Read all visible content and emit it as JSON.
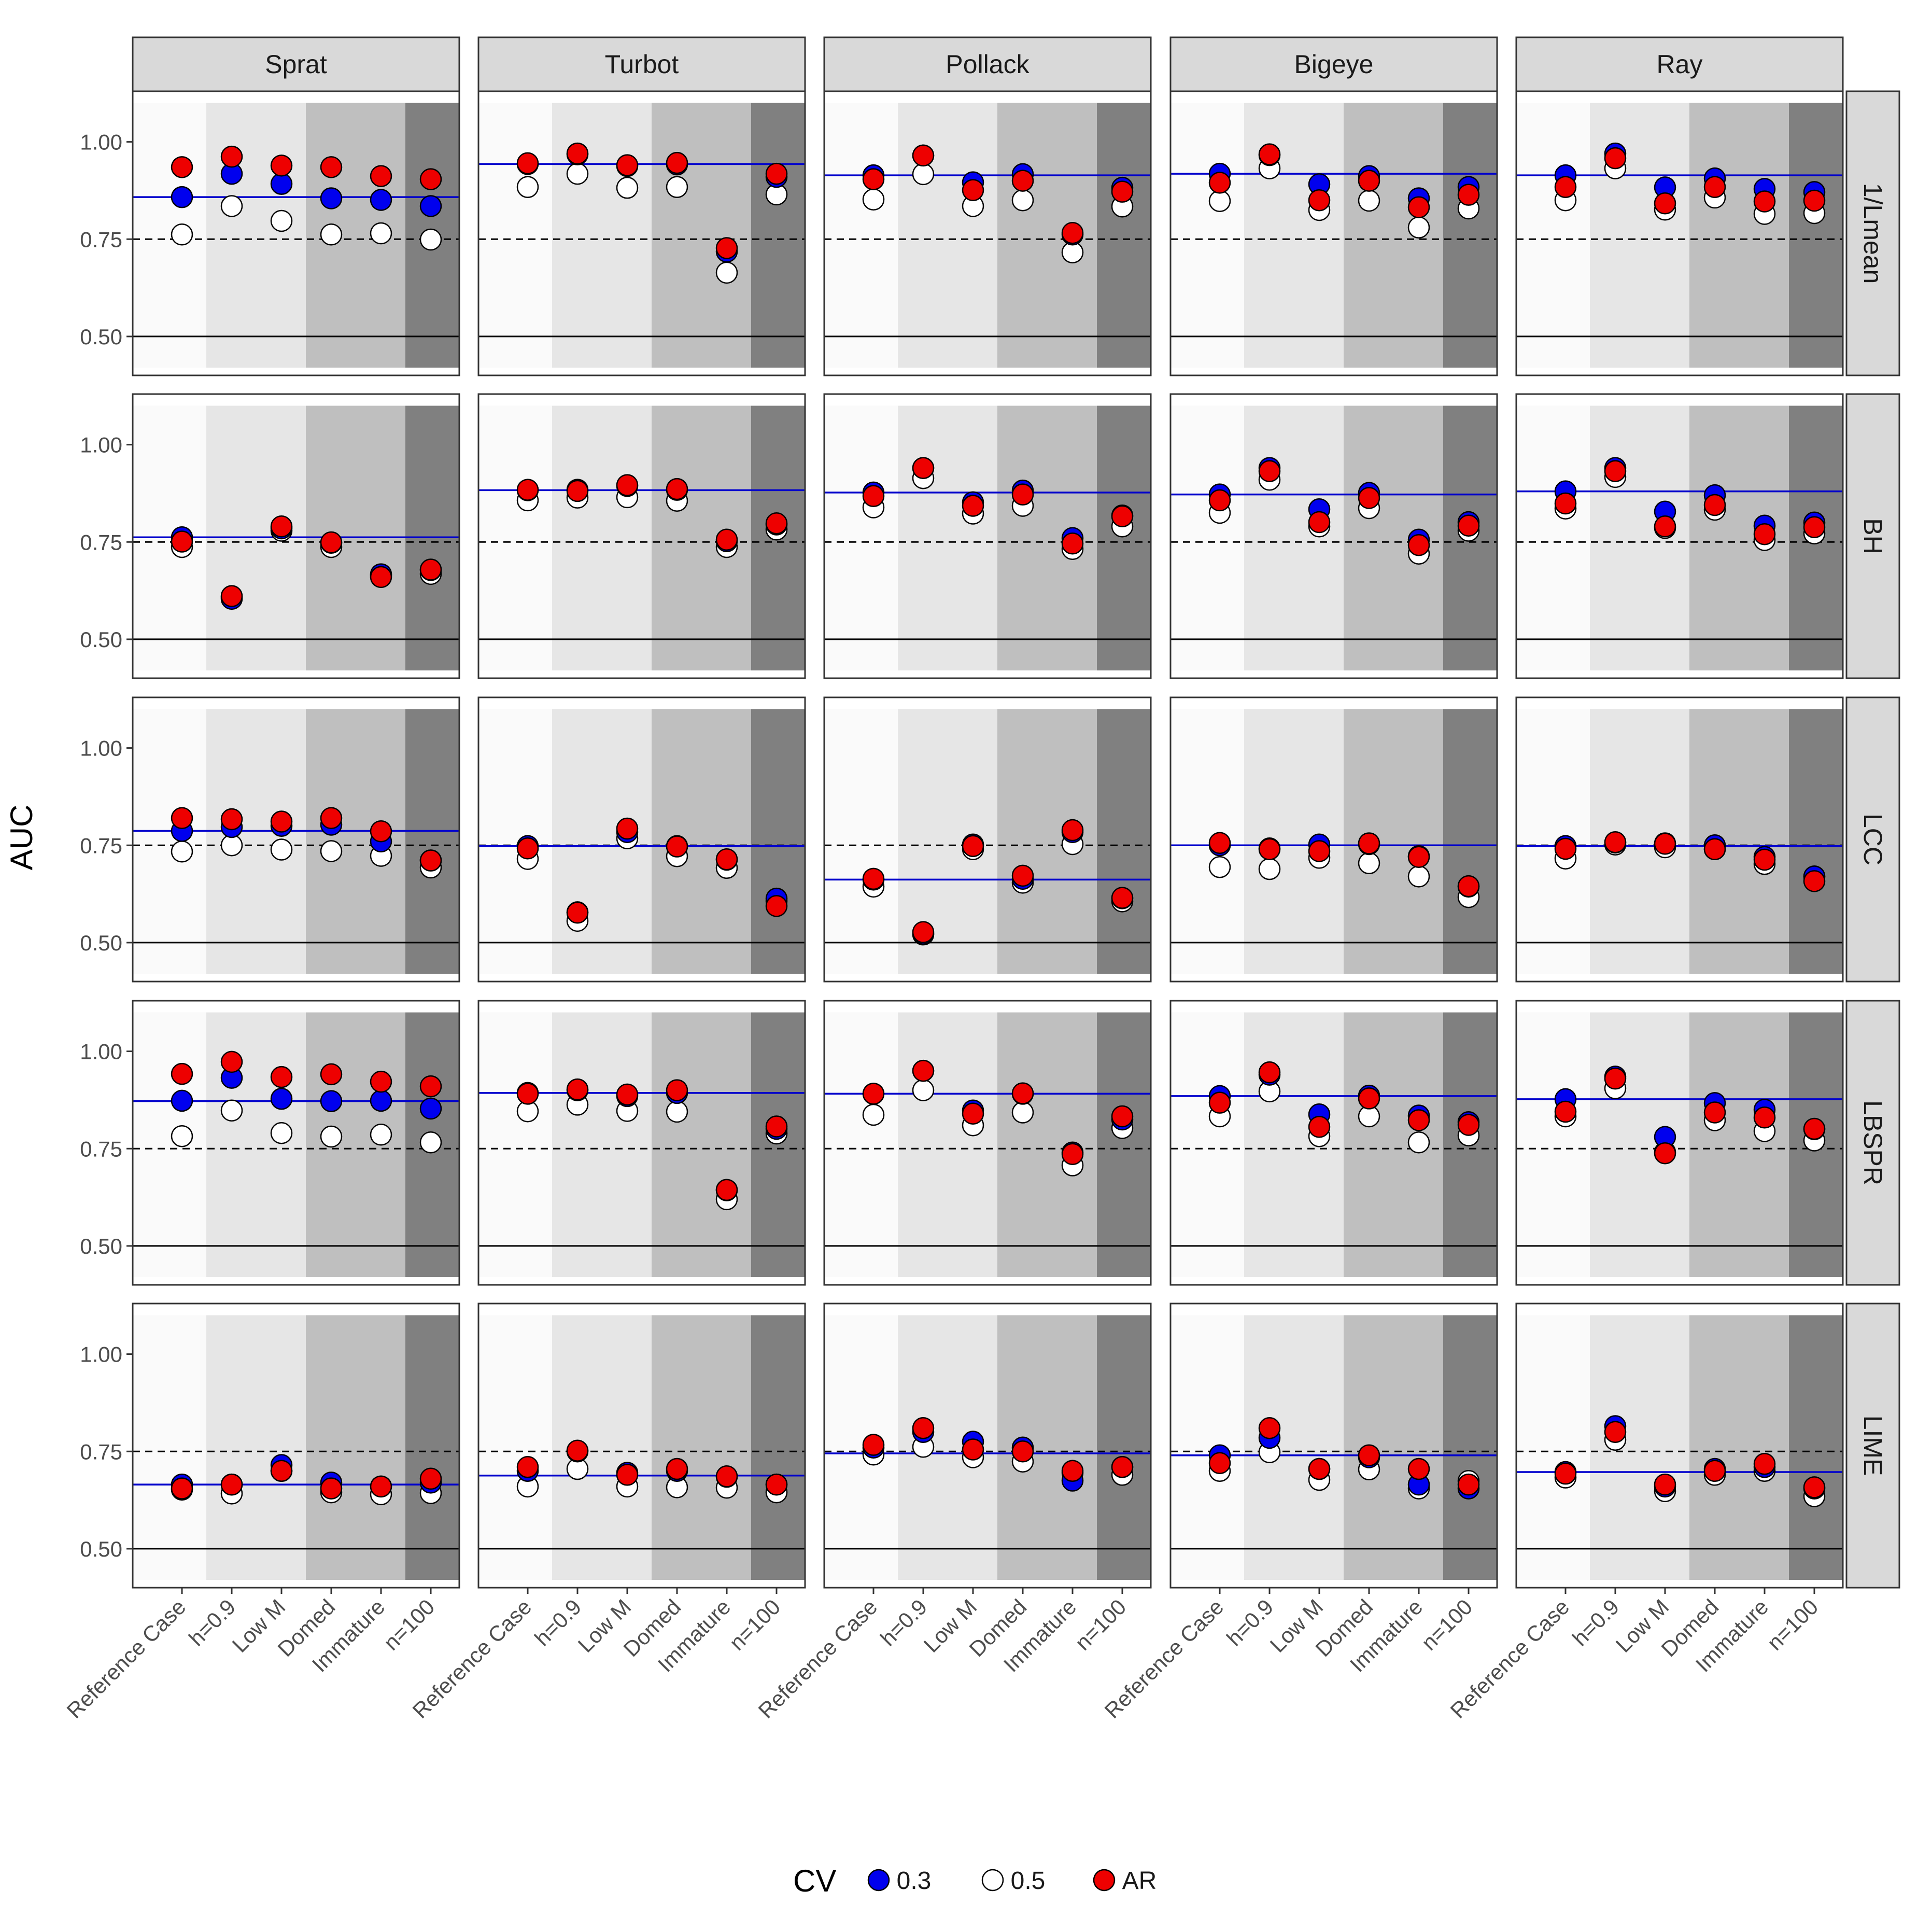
{
  "chart_data": {
    "type": "scatter",
    "ylabel": "AUC",
    "xlabel": "",
    "ylim": [
      0.4,
      1.13
    ],
    "yticks": [
      "0.50",
      "0.75",
      "1.00"
    ],
    "ytick_values": [
      0.5,
      0.75,
      1.0
    ],
    "categories": [
      "Reference Case",
      "h=0.9",
      "Low M",
      "Domed",
      "Immature",
      "n=100"
    ],
    "columns": [
      "Sprat",
      "Turbot",
      "Pollack",
      "Bigeye",
      "Ray"
    ],
    "rows": [
      "1/Lmean",
      "BH",
      "LCC",
      "LBSPR",
      "LIME"
    ],
    "reference_lines": {
      "solid": 0.5,
      "dashed": 0.75
    },
    "legend": {
      "title": "CV",
      "placement": "bottom",
      "entries": [
        {
          "label": "0.3",
          "color": "#0000ee"
        },
        {
          "label": "0.5",
          "color": "#ffffff"
        },
        {
          "label": "AR",
          "color": "#ee0000"
        }
      ]
    },
    "colors": {
      "cv03": "#0000ee",
      "cv05": "#ffffff",
      "ar": "#ee0000",
      "ref_line": "#0000cc",
      "band_shades": [
        "#fafafa",
        "#e6e6e6",
        "#e6e6e6",
        "#bfbfbf",
        "#bfbfbf",
        "#808080"
      ]
    },
    "panels": {
      "1/Lmean": {
        "Sprat": {
          "blue_line": 0.858,
          "cv03": [
            0.858,
            0.918,
            0.892,
            0.855,
            0.851,
            0.835
          ],
          "cv05": [
            0.762,
            0.835,
            0.797,
            0.762,
            0.765,
            0.749
          ],
          "ar": [
            0.935,
            0.962,
            0.939,
            0.935,
            0.912,
            0.904
          ]
        },
        "Turbot": {
          "blue_line": 0.943,
          "cv03": [
            0.943,
            0.968,
            0.938,
            0.942,
            0.718,
            0.91
          ],
          "cv05": [
            0.884,
            0.918,
            0.882,
            0.884,
            0.664,
            0.865
          ],
          "ar": [
            0.945,
            0.97,
            0.94,
            0.946,
            0.727,
            0.918
          ]
        },
        "Pollack": {
          "blue_line": 0.914,
          "cv03": [
            0.914,
            0.965,
            0.896,
            0.917,
            0.762,
            0.882
          ],
          "cv05": [
            0.852,
            0.917,
            0.835,
            0.85,
            0.716,
            0.834
          ],
          "ar": [
            0.904,
            0.965,
            0.876,
            0.9,
            0.766,
            0.872
          ]
        },
        "Bigeye": {
          "blue_line": 0.918,
          "cv03": [
            0.918,
            0.966,
            0.891,
            0.912,
            0.855,
            0.884
          ],
          "cv05": [
            0.848,
            0.932,
            0.825,
            0.849,
            0.78,
            0.829
          ],
          "ar": [
            0.895,
            0.968,
            0.85,
            0.9,
            0.832,
            0.864
          ]
        },
        "Ray": {
          "blue_line": 0.914,
          "cv03": [
            0.914,
            0.97,
            0.883,
            0.906,
            0.879,
            0.871
          ],
          "cv05": [
            0.85,
            0.932,
            0.826,
            0.857,
            0.815,
            0.817
          ],
          "ar": [
            0.884,
            0.958,
            0.842,
            0.884,
            0.847,
            0.849
          ]
        }
      },
      "BH": {
        "Sprat": {
          "blue_line": 0.762,
          "cv03": [
            0.762,
            0.604,
            0.785,
            0.748,
            0.667,
            0.678
          ],
          "cv05": [
            0.737,
            0.608,
            0.779,
            0.737,
            0.664,
            0.668
          ],
          "ar": [
            0.751,
            0.611,
            0.79,
            0.749,
            0.66,
            0.679
          ]
        },
        "Turbot": {
          "blue_line": 0.883,
          "cv03": [
            0.883,
            0.884,
            0.894,
            0.884,
            0.752,
            0.795
          ],
          "cv05": [
            0.857,
            0.864,
            0.865,
            0.856,
            0.737,
            0.782
          ],
          "ar": [
            0.884,
            0.881,
            0.896,
            0.886,
            0.756,
            0.798
          ]
        },
        "Pollack": {
          "blue_line": 0.877,
          "cv03": [
            0.877,
            0.94,
            0.852,
            0.882,
            0.76,
            0.818
          ],
          "cv05": [
            0.839,
            0.914,
            0.823,
            0.843,
            0.732,
            0.79
          ],
          "ar": [
            0.868,
            0.94,
            0.843,
            0.872,
            0.746,
            0.816
          ]
        },
        "Bigeye": {
          "blue_line": 0.872,
          "cv03": [
            0.872,
            0.94,
            0.834,
            0.876,
            0.756,
            0.801
          ],
          "cv05": [
            0.825,
            0.91,
            0.79,
            0.837,
            0.72,
            0.779
          ],
          "ar": [
            0.857,
            0.932,
            0.801,
            0.863,
            0.742,
            0.792
          ]
        },
        "Ray": {
          "blue_line": 0.88,
          "cv03": [
            0.88,
            0.94,
            0.828,
            0.87,
            0.792,
            0.8
          ],
          "cv05": [
            0.836,
            0.917,
            0.786,
            0.833,
            0.755,
            0.772
          ],
          "ar": [
            0.849,
            0.932,
            0.79,
            0.845,
            0.77,
            0.788
          ]
        }
      },
      "LCC": {
        "Sprat": {
          "blue_line": 0.787,
          "cv03": [
            0.787,
            0.797,
            0.8,
            0.803,
            0.76,
            0.711
          ],
          "cv05": [
            0.734,
            0.75,
            0.739,
            0.735,
            0.723,
            0.693
          ],
          "ar": [
            0.82,
            0.817,
            0.811,
            0.82,
            0.786,
            0.711
          ]
        },
        "Turbot": {
          "blue_line": 0.748,
          "cv03": [
            0.748,
            0.578,
            0.784,
            0.748,
            0.713,
            0.613
          ],
          "cv05": [
            0.715,
            0.556,
            0.768,
            0.722,
            0.692,
            0.607
          ],
          "ar": [
            0.742,
            0.577,
            0.793,
            0.747,
            0.714,
            0.594
          ]
        },
        "Pollack": {
          "blue_line": 0.662,
          "cv03": [
            0.662,
            0.523,
            0.752,
            0.664,
            0.784,
            0.614
          ],
          "cv05": [
            0.644,
            0.521,
            0.74,
            0.654,
            0.753,
            0.606
          ],
          "ar": [
            0.664,
            0.527,
            0.748,
            0.672,
            0.789,
            0.615
          ]
        },
        "Bigeye": {
          "blue_line": 0.75,
          "cv03": [
            0.75,
            0.742,
            0.752,
            0.753,
            0.722,
            0.644
          ],
          "cv05": [
            0.694,
            0.689,
            0.718,
            0.704,
            0.67,
            0.617
          ],
          "ar": [
            0.756,
            0.74,
            0.735,
            0.755,
            0.72,
            0.645
          ]
        },
        "Ray": {
          "blue_line": 0.748,
          "cv03": [
            0.748,
            0.757,
            0.755,
            0.75,
            0.72,
            0.67
          ],
          "cv05": [
            0.716,
            0.752,
            0.745,
            0.74,
            0.702,
            0.67
          ],
          "ar": [
            0.741,
            0.758,
            0.754,
            0.74,
            0.713,
            0.658
          ]
        }
      },
      "LBSPR": {
        "Sprat": {
          "blue_line": 0.872,
          "cv03": [
            0.873,
            0.932,
            0.878,
            0.872,
            0.873,
            0.853
          ],
          "cv05": [
            0.782,
            0.848,
            0.79,
            0.781,
            0.786,
            0.766
          ],
          "ar": [
            0.942,
            0.973,
            0.934,
            0.941,
            0.922,
            0.91
          ]
        },
        "Turbot": {
          "blue_line": 0.893,
          "cv03": [
            0.893,
            0.9,
            0.885,
            0.893,
            0.643,
            0.801
          ],
          "cv05": [
            0.846,
            0.863,
            0.847,
            0.845,
            0.62,
            0.789
          ],
          "ar": [
            0.891,
            0.902,
            0.889,
            0.9,
            0.644,
            0.807
          ]
        },
        "Pollack": {
          "blue_line": 0.891,
          "cv03": [
            0.891,
            0.95,
            0.848,
            0.891,
            0.74,
            0.825
          ],
          "cv05": [
            0.837,
            0.9,
            0.81,
            0.843,
            0.707,
            0.803
          ],
          "ar": [
            0.891,
            0.95,
            0.84,
            0.892,
            0.736,
            0.833
          ]
        },
        "Bigeye": {
          "blue_line": 0.885,
          "cv03": [
            0.885,
            0.94,
            0.838,
            0.886,
            0.835,
            0.818
          ],
          "cv05": [
            0.833,
            0.897,
            0.782,
            0.833,
            0.766,
            0.784
          ],
          "ar": [
            0.868,
            0.946,
            0.806,
            0.879,
            0.823,
            0.811
          ]
        },
        "Ray": {
          "blue_line": 0.877,
          "cv03": [
            0.877,
            0.935,
            0.78,
            0.867,
            0.85,
            0.8
          ],
          "cv05": [
            0.833,
            0.905,
            0.741,
            0.823,
            0.795,
            0.771
          ],
          "ar": [
            0.845,
            0.93,
            0.738,
            0.843,
            0.83,
            0.801
          ]
        }
      },
      "LIME": {
        "Sprat": {
          "blue_line": 0.665,
          "cv03": [
            0.665,
            0.665,
            0.715,
            0.67,
            0.66,
            0.67
          ],
          "cv05": [
            0.652,
            0.642,
            0.7,
            0.645,
            0.64,
            0.643
          ],
          "ar": [
            0.655,
            0.665,
            0.7,
            0.655,
            0.66,
            0.68
          ]
        },
        "Turbot": {
          "blue_line": 0.688,
          "cv03": [
            0.7,
            0.75,
            0.695,
            0.7,
            0.685,
            0.665
          ],
          "cv05": [
            0.66,
            0.705,
            0.66,
            0.658,
            0.657,
            0.645
          ],
          "ar": [
            0.71,
            0.752,
            0.69,
            0.705,
            0.686,
            0.665
          ]
        },
        "Pollack": {
          "blue_line": 0.745,
          "cv03": [
            0.76,
            0.8,
            0.775,
            0.76,
            0.675,
            0.71
          ],
          "cv05": [
            0.742,
            0.762,
            0.735,
            0.724,
            0.695,
            0.69
          ],
          "ar": [
            0.767,
            0.81,
            0.755,
            0.75,
            0.7,
            0.71
          ]
        },
        "Bigeye": {
          "blue_line": 0.74,
          "cv03": [
            0.74,
            0.785,
            0.705,
            0.735,
            0.665,
            0.655
          ],
          "cv05": [
            0.7,
            0.748,
            0.677,
            0.704,
            0.655,
            0.674
          ],
          "ar": [
            0.72,
            0.81,
            0.705,
            0.74,
            0.705,
            0.665
          ]
        },
        "Ray": {
          "blue_line": 0.697,
          "cv03": [
            0.697,
            0.815,
            0.66,
            0.705,
            0.71,
            0.655
          ],
          "cv05": [
            0.683,
            0.78,
            0.648,
            0.69,
            0.7,
            0.635
          ],
          "ar": [
            0.693,
            0.8,
            0.665,
            0.7,
            0.718,
            0.658
          ]
        }
      }
    }
  }
}
